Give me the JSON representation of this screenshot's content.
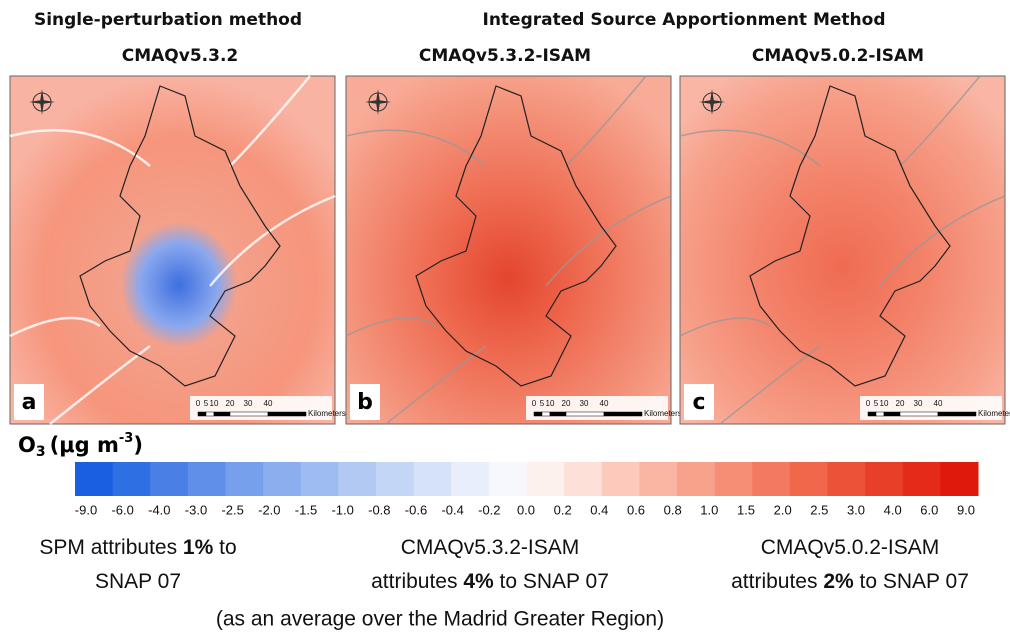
{
  "header": {
    "left_title": "Single-perturbation method",
    "right_title": "Integrated Source Apportionment Method"
  },
  "maps": [
    {
      "title": "CMAQv5.3.2",
      "letter": "a"
    },
    {
      "title": "CMAQv5.3.2-ISAM",
      "letter": "b"
    },
    {
      "title": "CMAQv5.0.2-ISAM",
      "letter": "c"
    }
  ],
  "scale_bar": {
    "labels": [
      "0",
      "5",
      "10",
      "20",
      "30",
      "40"
    ],
    "unit": "Kilometers"
  },
  "colorbar": {
    "label": {
      "species": "O",
      "subscript": "3",
      "unit": "(μg m",
      "superscript": "-3",
      "close": ")"
    },
    "tick_labels": [
      "-9.0",
      "-6.0",
      "-4.0",
      "-3.0",
      "-2.5",
      "-2.0",
      "-1.5",
      "-1.0",
      "-0.8",
      "-0.6",
      "-0.4",
      "-0.2",
      "0.0",
      "0.2",
      "0.4",
      "0.6",
      "0.8",
      "1.0",
      "1.5",
      "2.0",
      "2.5",
      "3.0",
      "4.0",
      "6.0",
      "9.0"
    ],
    "colors": [
      "#1a5fe0",
      "#2e6fe3",
      "#4a80e6",
      "#5f8fe8",
      "#769fec",
      "#8aaeee",
      "#9ebcf1",
      "#b2caf3",
      "#c4d6f6",
      "#d6e2f8",
      "#e8eefb",
      "#f6f8fd",
      "#fdf1ee",
      "#fde0d8",
      "#fcc9bb",
      "#fab5a3",
      "#f8a28c",
      "#f68e76",
      "#f37a60",
      "#f0674c",
      "#ec5238",
      "#e83f28",
      "#e42b18",
      "#e01a0a"
    ]
  },
  "captions": [
    {
      "line1_pre": "SPM attributes ",
      "bold": "1%",
      "line1_post": " to",
      "line2_pre": "SNAP 07",
      "line2_post": ""
    },
    {
      "line1_pre": "CMAQv5.3.2-ISAM",
      "bold": "4%",
      "line1_post": "",
      "line2_pre": "attributes ",
      "line2_post": " to SNAP 07"
    },
    {
      "line1_pre": "CMAQv5.0.2-ISAM",
      "bold": "2%",
      "line1_post": "",
      "line2_pre": "attributes ",
      "line2_post": " to SNAP 07"
    }
  ],
  "footnote": "(as an average over the Madrid Greater Region)"
}
